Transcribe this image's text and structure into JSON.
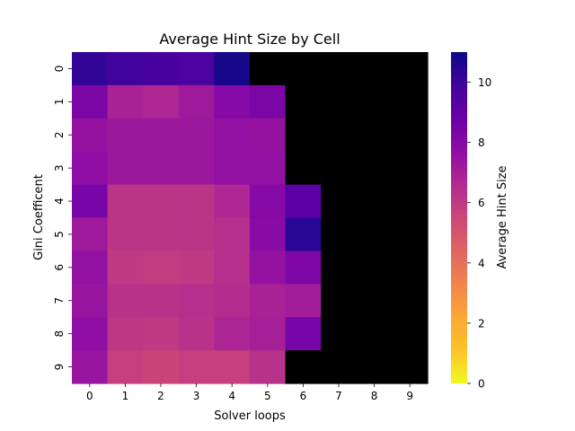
{
  "chart_data": {
    "type": "heatmap",
    "title": "Average Hint Size by Cell",
    "xlabel": "Solver loops",
    "ylabel": "Gini Coefficent",
    "x_categories": [
      "0",
      "1",
      "2",
      "3",
      "4",
      "5",
      "6",
      "7",
      "8",
      "9"
    ],
    "y_categories": [
      "0",
      "1",
      "2",
      "3",
      "4",
      "5",
      "6",
      "7",
      "8",
      "9"
    ],
    "values": [
      [
        10.2,
        9.9,
        9.7,
        9.6,
        10.8,
        null,
        null,
        null,
        null,
        null
      ],
      [
        8.3,
        6.9,
        6.7,
        7.2,
        8.0,
        8.3,
        null,
        null,
        null,
        null
      ],
      [
        7.5,
        7.3,
        7.3,
        7.3,
        7.6,
        7.5,
        null,
        null,
        null,
        null
      ],
      [
        7.7,
        7.3,
        7.3,
        7.3,
        7.6,
        7.6,
        null,
        null,
        null,
        null
      ],
      [
        8.4,
        6.2,
        6.2,
        6.2,
        6.7,
        8.0,
        9.2,
        null,
        null,
        null
      ],
      [
        7.2,
        6.2,
        6.2,
        6.2,
        6.4,
        7.9,
        10.4,
        null,
        null,
        null
      ],
      [
        7.6,
        6.0,
        5.9,
        6.0,
        6.4,
        7.5,
        8.2,
        null,
        null,
        null
      ],
      [
        7.4,
        6.3,
        6.3,
        6.4,
        6.5,
        6.9,
        7.1,
        null,
        null,
        null
      ],
      [
        7.7,
        6.1,
        6.0,
        6.3,
        6.8,
        7.0,
        8.4,
        null,
        null,
        null
      ],
      [
        7.4,
        5.8,
        5.6,
        5.8,
        5.8,
        6.3,
        null,
        null,
        null,
        null
      ]
    ],
    "missing_color": "#000000",
    "colormap": "plasma_r",
    "vmin": 0,
    "vmax": 11,
    "colorbar": {
      "label": "Average Hint Size",
      "ticks": [
        0,
        2,
        4,
        6,
        8,
        10
      ],
      "tick_labels": [
        "0",
        "2",
        "4",
        "6",
        "8",
        "10"
      ]
    }
  }
}
